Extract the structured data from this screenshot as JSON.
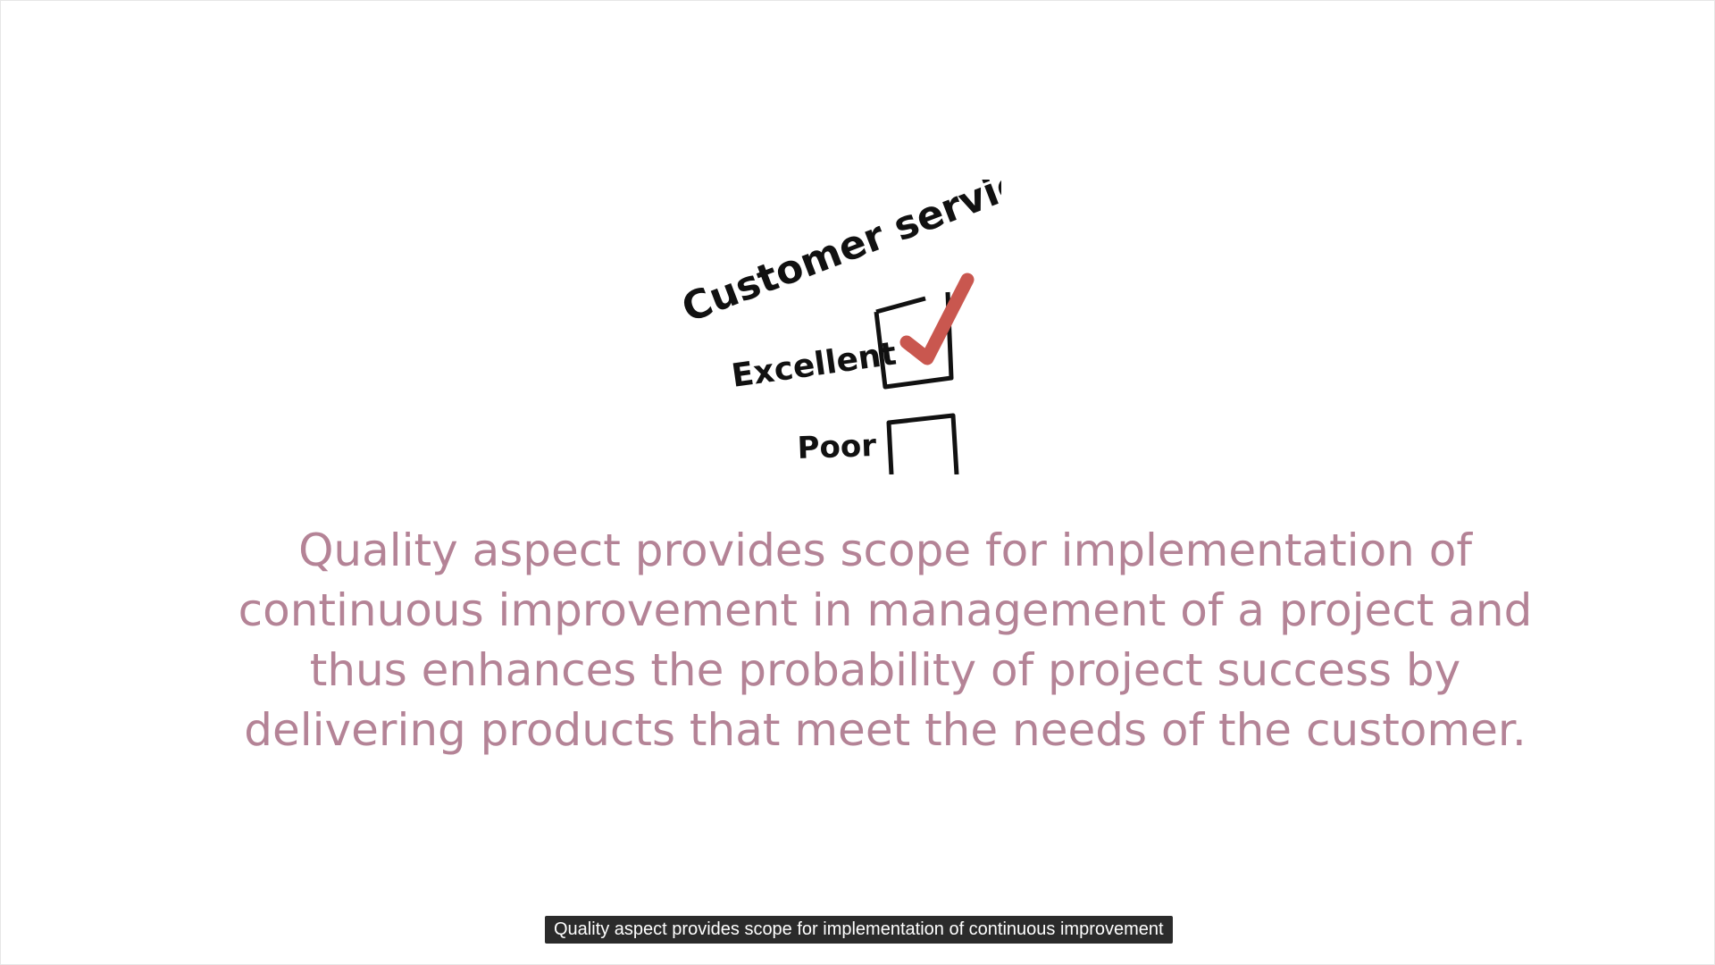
{
  "illustration": {
    "heading": "Customer service",
    "option_excellent": "Excellent",
    "option_poor": "Poor",
    "check_color": "#c9574f"
  },
  "slide": {
    "lines": [
      "Quality aspect provides scope for implementation of",
      "continuous improvement in management of a project and",
      "thus enhances the probability of project success by",
      "delivering products that meet the needs of the customer."
    ],
    "text_color": "#b48396"
  },
  "caption": {
    "text": "Quality aspect provides scope for implementation of continuous improvement"
  }
}
